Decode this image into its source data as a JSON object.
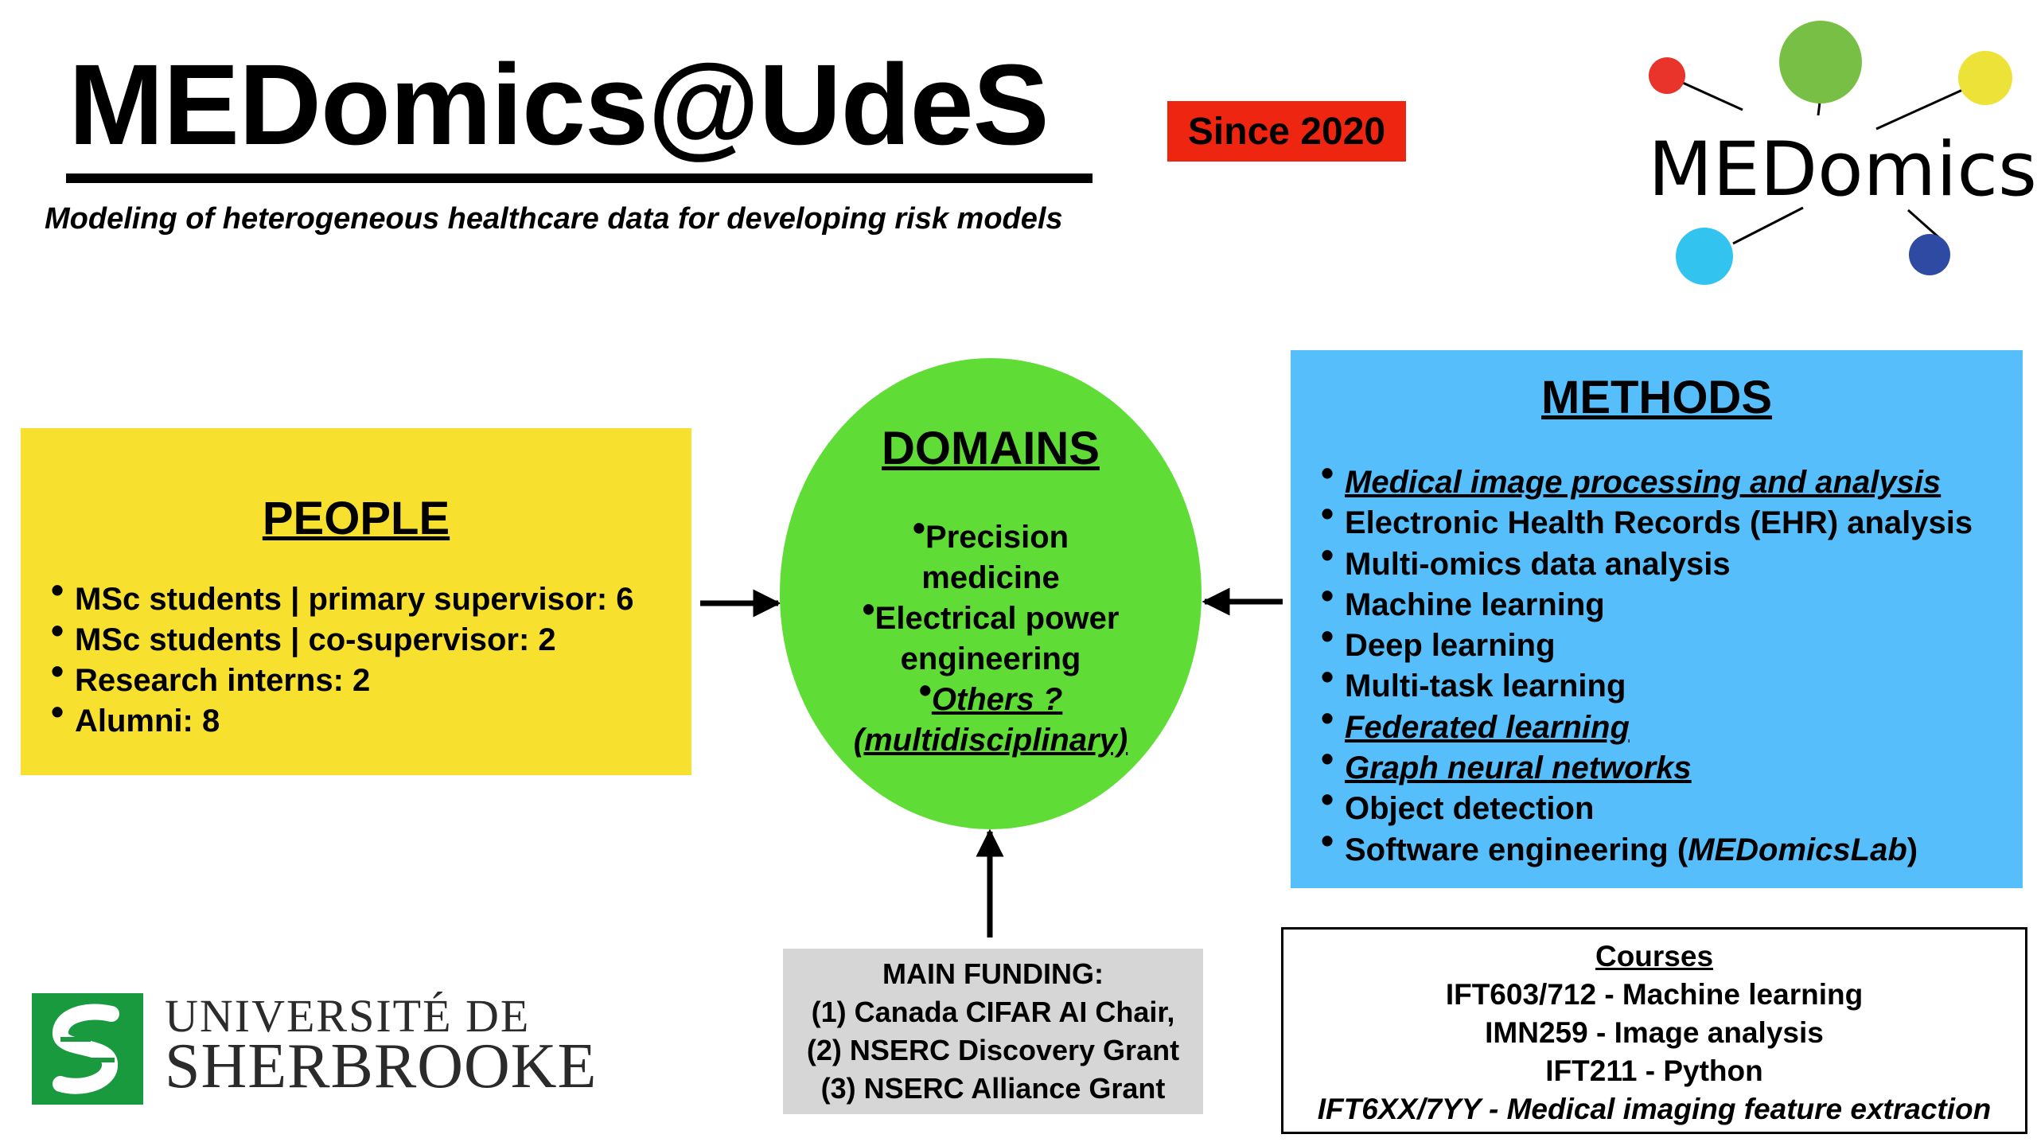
{
  "header": {
    "title": "MEDomics@UdeS",
    "subtitle": "Modeling of heterogeneous healthcare data for developing risk models",
    "since": "Since 2020"
  },
  "logo": {
    "text": "MEDomics",
    "node_colors": [
      "#e8342a",
      "#78c045",
      "#ede338",
      "#33c3ef",
      "#2e4aa3"
    ]
  },
  "people": {
    "title": "PEOPLE",
    "items": [
      "MSc students | primary supervisor: 6",
      "MSc students | co-supervisor: 2",
      "Research interns: 2",
      "Alumni: 8"
    ]
  },
  "domains": {
    "title": "DOMAINS",
    "item1_line1": "Precision",
    "item1_line2": "medicine",
    "item2_line1": "Electrical power",
    "item2_line2": "engineering",
    "item3_line1": "Others ?",
    "item3_line2": "(multidisciplinary)"
  },
  "methods": {
    "title": "METHODS",
    "items": [
      "Medical image processing and analysis",
      "Electronic Health Records (EHR) analysis",
      "Multi-omics data analysis",
      "Machine learning",
      "Deep learning",
      "Multi-task learning",
      "Federated learning",
      "Graph neural networks",
      "Object detection"
    ],
    "last_prefix": "Software engineering (",
    "last_italic": "MEDomicsLab",
    "last_suffix": ")"
  },
  "funding": {
    "title": "MAIN FUNDING:",
    "lines": [
      "(1) Canada CIFAR AI Chair,",
      "(2) NSERC Discovery Grant",
      "(3) NSERC Alliance Grant"
    ]
  },
  "courses": {
    "title": "Courses",
    "lines": [
      "IFT603/712 - Machine learning",
      "IMN259 - Image analysis",
      "IFT211 - Python",
      "IFT6XX/7YY - Medical imaging feature extraction"
    ]
  },
  "university": {
    "line1": "UNIVERSITÉ DE",
    "line2": "SHERBROOKE",
    "brand_color": "#199a3f"
  },
  "colors": {
    "people_bg": "#f7e02e",
    "domains_bg": "#5fdc35",
    "methods_bg": "#56bffb",
    "funding_bg": "#d6d6d6",
    "since_bg": "#ee2510"
  }
}
